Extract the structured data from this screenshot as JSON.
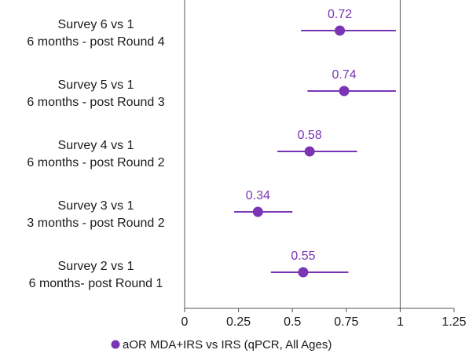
{
  "chart_data": {
    "type": "scatter",
    "subtype": "forest-plot",
    "title": "",
    "xlabel": "",
    "ylabel": "",
    "xlim": [
      0,
      1.25
    ],
    "x_ticks": [
      0,
      0.25,
      0.5,
      0.75,
      1,
      1.25
    ],
    "x_tick_labels": [
      "0",
      "0.25",
      "0.5",
      "0.75",
      "1",
      "1.25"
    ],
    "reference_line": 1,
    "grid": false,
    "legend_position": "bottom",
    "colors": {
      "series": "#7a35b4",
      "axis": "#555555",
      "text": "#1a1a1a"
    },
    "categories": [
      {
        "line1": "Survey 6 vs 1",
        "line2": "6 months - post Round 4"
      },
      {
        "line1": "Survey 5 vs 1",
        "line2": "6 months - post Round 3"
      },
      {
        "line1": "Survey 4 vs 1",
        "line2": "6 months - post Round 2"
      },
      {
        "line1": "Survey 3 vs 1",
        "line2": "3 months - post Round 2"
      },
      {
        "line1": "Survey 2 vs 1",
        "line2": "6 months- post Round 1"
      }
    ],
    "series": [
      {
        "name": "aOR MDA+IRS vs IRS (qPCR, All Ages)",
        "values": [
          0.72,
          0.74,
          0.58,
          0.34,
          0.55
        ],
        "labels": [
          "0.72",
          "0.74",
          "0.58",
          "0.34",
          "0.55"
        ],
        "ci_low": [
          0.54,
          0.57,
          0.43,
          0.23,
          0.4
        ],
        "ci_high": [
          0.98,
          0.98,
          0.8,
          0.5,
          0.76
        ]
      }
    ]
  }
}
